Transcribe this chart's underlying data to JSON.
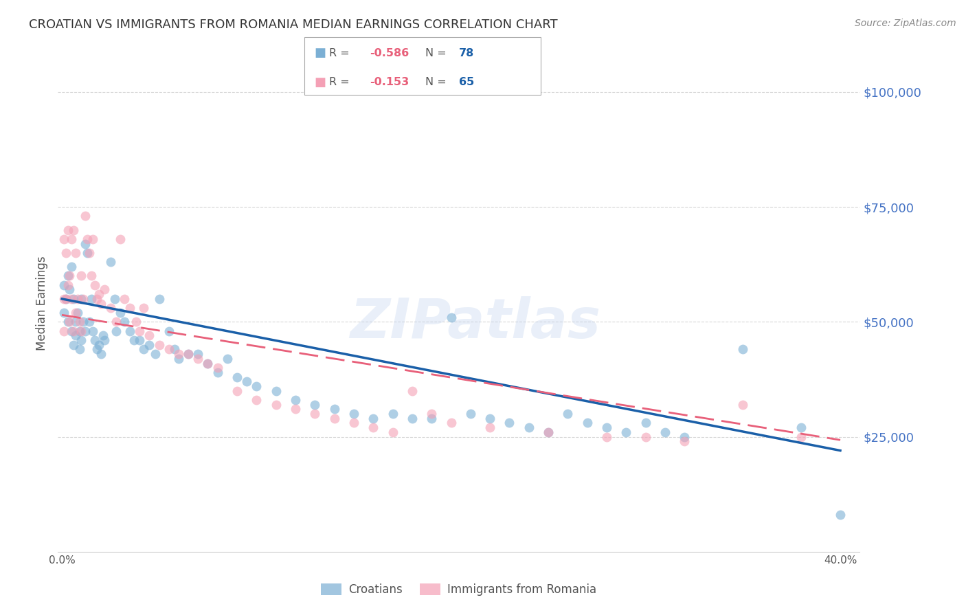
{
  "title": "CROATIAN VS IMMIGRANTS FROM ROMANIA MEDIAN EARNINGS CORRELATION CHART",
  "source": "Source: ZipAtlas.com",
  "ylabel": "Median Earnings",
  "watermark": "ZIPatlas",
  "xlim": [
    -0.002,
    0.41
  ],
  "ylim": [
    0,
    108000
  ],
  "yticks": [
    25000,
    50000,
    75000,
    100000
  ],
  "ytick_labels": [
    "$25,000",
    "$50,000",
    "$75,000",
    "$100,000"
  ],
  "xticks": [
    0.0,
    0.05,
    0.1,
    0.15,
    0.2,
    0.25,
    0.3,
    0.35,
    0.4
  ],
  "xtick_labels": [
    "0.0%",
    "",
    "",
    "",
    "",
    "",
    "",
    "",
    "40.0%"
  ],
  "legend_blue_r_val": "-0.586",
  "legend_blue_n_val": "78",
  "legend_pink_r_val": "-0.153",
  "legend_pink_n_val": "65",
  "blue_color": "#7bafd4",
  "pink_color": "#f4a0b5",
  "blue_line_color": "#1a5fa8",
  "pink_line_color": "#e8607a",
  "r_value_color": "#e8607a",
  "n_value_color": "#1a5fa8",
  "title_color": "#333333",
  "ytick_color": "#4472c4",
  "source_color": "#888888",
  "grid_color": "#cccccc",
  "background_color": "#ffffff",
  "figsize": [
    14.06,
    8.92
  ],
  "blue_intercept": 55000,
  "blue_slope": -82500,
  "pink_intercept": 51500,
  "pink_slope": -68000,
  "blue_x": [
    0.001,
    0.001,
    0.002,
    0.003,
    0.003,
    0.004,
    0.005,
    0.005,
    0.006,
    0.006,
    0.007,
    0.007,
    0.008,
    0.009,
    0.009,
    0.01,
    0.01,
    0.011,
    0.012,
    0.012,
    0.013,
    0.014,
    0.015,
    0.016,
    0.017,
    0.018,
    0.019,
    0.02,
    0.021,
    0.022,
    0.025,
    0.027,
    0.028,
    0.03,
    0.032,
    0.035,
    0.037,
    0.04,
    0.042,
    0.045,
    0.048,
    0.05,
    0.055,
    0.058,
    0.06,
    0.065,
    0.07,
    0.075,
    0.08,
    0.085,
    0.09,
    0.095,
    0.1,
    0.11,
    0.12,
    0.13,
    0.14,
    0.15,
    0.16,
    0.17,
    0.18,
    0.19,
    0.2,
    0.21,
    0.22,
    0.23,
    0.24,
    0.25,
    0.26,
    0.27,
    0.28,
    0.29,
    0.3,
    0.31,
    0.32,
    0.35,
    0.38,
    0.4
  ],
  "blue_y": [
    58000,
    52000,
    55000,
    60000,
    50000,
    57000,
    62000,
    48000,
    55000,
    45000,
    50000,
    47000,
    52000,
    48000,
    44000,
    55000,
    46000,
    50000,
    67000,
    48000,
    65000,
    50000,
    55000,
    48000,
    46000,
    44000,
    45000,
    43000,
    47000,
    46000,
    63000,
    55000,
    48000,
    52000,
    50000,
    48000,
    46000,
    46000,
    44000,
    45000,
    43000,
    55000,
    48000,
    44000,
    42000,
    43000,
    43000,
    41000,
    39000,
    42000,
    38000,
    37000,
    36000,
    35000,
    33000,
    32000,
    31000,
    30000,
    29000,
    30000,
    29000,
    29000,
    51000,
    30000,
    29000,
    28000,
    27000,
    26000,
    30000,
    28000,
    27000,
    26000,
    28000,
    26000,
    25000,
    44000,
    27000,
    8000
  ],
  "pink_x": [
    0.001,
    0.001,
    0.001,
    0.002,
    0.002,
    0.003,
    0.003,
    0.004,
    0.004,
    0.005,
    0.005,
    0.006,
    0.006,
    0.007,
    0.007,
    0.008,
    0.009,
    0.01,
    0.01,
    0.011,
    0.012,
    0.013,
    0.014,
    0.015,
    0.016,
    0.017,
    0.018,
    0.019,
    0.02,
    0.022,
    0.025,
    0.028,
    0.03,
    0.032,
    0.035,
    0.038,
    0.04,
    0.042,
    0.045,
    0.05,
    0.055,
    0.06,
    0.065,
    0.07,
    0.075,
    0.08,
    0.09,
    0.1,
    0.11,
    0.12,
    0.13,
    0.14,
    0.15,
    0.16,
    0.17,
    0.18,
    0.19,
    0.2,
    0.22,
    0.25,
    0.28,
    0.3,
    0.32,
    0.35,
    0.38
  ],
  "pink_y": [
    55000,
    68000,
    48000,
    65000,
    55000,
    70000,
    58000,
    60000,
    50000,
    68000,
    55000,
    70000,
    48000,
    65000,
    52000,
    55000,
    50000,
    60000,
    48000,
    55000,
    73000,
    68000,
    65000,
    60000,
    68000,
    58000,
    55000,
    56000,
    54000,
    57000,
    53000,
    50000,
    68000,
    55000,
    53000,
    50000,
    48000,
    53000,
    47000,
    45000,
    44000,
    43000,
    43000,
    42000,
    41000,
    40000,
    35000,
    33000,
    32000,
    31000,
    30000,
    29000,
    28000,
    27000,
    26000,
    35000,
    30000,
    28000,
    27000,
    26000,
    25000,
    25000,
    24000,
    32000,
    25000
  ]
}
